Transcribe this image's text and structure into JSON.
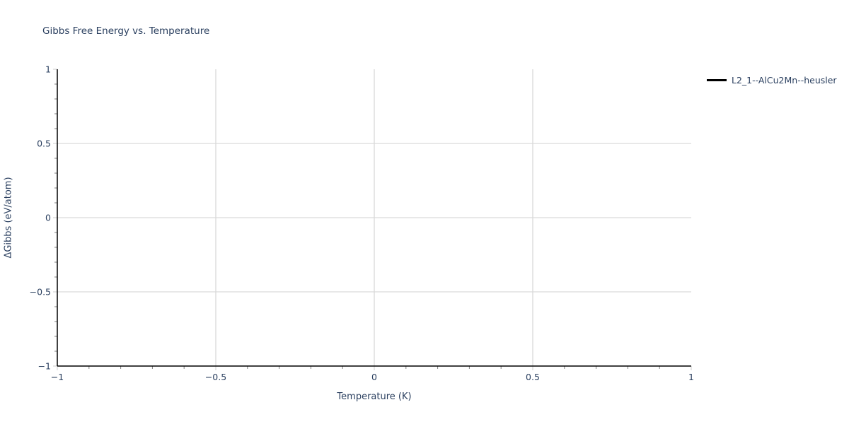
{
  "chart_data": {
    "type": "line",
    "title": "Gibbs Free Energy vs. Temperature",
    "xlabel": "Temperature (K)",
    "ylabel": "ΔGibbs (eV/atom)",
    "xlim": [
      -1,
      1
    ],
    "ylim": [
      -1,
      1
    ],
    "x_ticks": [
      -1,
      -0.5,
      0,
      0.5,
      1
    ],
    "x_tick_labels": [
      "−1",
      "−0.5",
      "0",
      "0.5",
      "1"
    ],
    "y_ticks": [
      -1,
      -0.5,
      0,
      0.5,
      1
    ],
    "y_tick_labels": [
      "−1",
      "−0.5",
      "0",
      "0.5",
      "1"
    ],
    "minor_tick_step": 0.1,
    "grid": true,
    "legend_position": "top-right-outside",
    "series": [
      {
        "name": "L2_1--AlCu2Mn--heusler",
        "color": "#000000",
        "x": [],
        "y": []
      }
    ],
    "colors": {
      "text": "#2a3f5f",
      "axis_line": "#000000",
      "grid_line": "#d9d9d9",
      "major_tick": "#d9d9d9",
      "minor_tick": "#7f7f7f",
      "background": "#ffffff"
    }
  }
}
